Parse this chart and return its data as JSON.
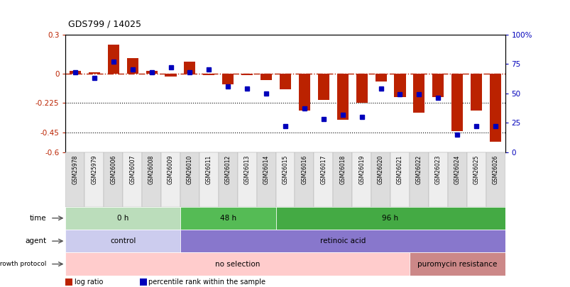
{
  "title": "GDS799 / 14025",
  "samples": [
    "GSM25978",
    "GSM25979",
    "GSM26006",
    "GSM26007",
    "GSM26008",
    "GSM26009",
    "GSM26010",
    "GSM26011",
    "GSM26012",
    "GSM26013",
    "GSM26014",
    "GSM26015",
    "GSM26016",
    "GSM26017",
    "GSM26018",
    "GSM26019",
    "GSM26020",
    "GSM26021",
    "GSM26022",
    "GSM26023",
    "GSM26024",
    "GSM26025",
    "GSM26026"
  ],
  "log_ratio": [
    0.02,
    0.01,
    0.22,
    0.12,
    0.02,
    -0.02,
    0.09,
    -0.01,
    -0.08,
    -0.01,
    -0.05,
    -0.12,
    -0.28,
    -0.2,
    -0.35,
    -0.22,
    -0.06,
    -0.18,
    -0.3,
    -0.18,
    -0.44,
    -0.28,
    -0.52
  ],
  "percentile_rank": [
    68,
    63,
    77,
    70,
    68,
    72,
    68,
    70,
    56,
    54,
    50,
    22,
    37,
    28,
    32,
    30,
    54,
    49,
    49,
    46,
    15,
    22,
    22
  ],
  "ylim_left": [
    -0.6,
    0.3
  ],
  "ylim_right": [
    0,
    100
  ],
  "yticks_left": [
    0.3,
    0.0,
    -0.225,
    -0.45,
    -0.6
  ],
  "yticks_right": [
    100,
    75,
    50,
    25,
    0
  ],
  "dotted_lines": [
    -0.225,
    -0.45
  ],
  "bar_color": "#bb2200",
  "dot_color": "#0000bb",
  "dashed_line_color": "#bb2200",
  "time_labels": [
    {
      "label": "0 h",
      "start": 0,
      "end": 6,
      "color": "#bbddbb"
    },
    {
      "label": "48 h",
      "start": 6,
      "end": 11,
      "color": "#55bb55"
    },
    {
      "label": "96 h",
      "start": 11,
      "end": 23,
      "color": "#44aa44"
    }
  ],
  "agent_labels": [
    {
      "label": "control",
      "start": 0,
      "end": 6,
      "color": "#ccccee"
    },
    {
      "label": "retinoic acid",
      "start": 6,
      "end": 23,
      "color": "#8877cc"
    }
  ],
  "growth_labels": [
    {
      "label": "no selection",
      "start": 0,
      "end": 18,
      "color": "#ffcccc"
    },
    {
      "label": "puromycin resistance",
      "start": 18,
      "end": 23,
      "color": "#cc8888"
    }
  ],
  "legend_items": [
    {
      "label": "log ratio",
      "color": "#bb2200"
    },
    {
      "label": "percentile rank within the sample",
      "color": "#0000bb"
    }
  ]
}
